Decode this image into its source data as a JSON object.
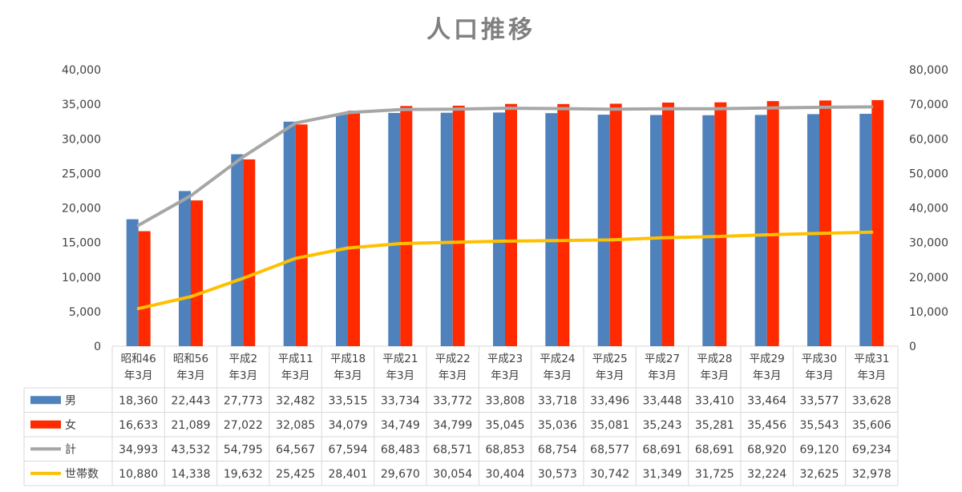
{
  "chart_data": {
    "type": "bar",
    "title": "人口推移",
    "categories": [
      [
        "昭和46",
        "年3月"
      ],
      [
        "昭和56",
        "年3月"
      ],
      [
        "平成2",
        "年3月"
      ],
      [
        "平成11",
        "年3月"
      ],
      [
        "平成18",
        "年3月"
      ],
      [
        "平成21",
        "年3月"
      ],
      [
        "平成22",
        "年3月"
      ],
      [
        "平成23",
        "年3月"
      ],
      [
        "平成24",
        "年3月"
      ],
      [
        "平成25",
        "年3月"
      ],
      [
        "平成27",
        "年3月"
      ],
      [
        "平成28",
        "年3月"
      ],
      [
        "平成29",
        "年3月"
      ],
      [
        "平成30",
        "年3月"
      ],
      [
        "平成31",
        "年3月"
      ]
    ],
    "series": [
      {
        "name": "男",
        "type": "bar",
        "axis": "left",
        "color": "#4f81bd",
        "values": [
          18360,
          22443,
          27773,
          32482,
          33515,
          33734,
          33772,
          33808,
          33718,
          33496,
          33448,
          33410,
          33464,
          33577,
          33628
        ],
        "labels": [
          "18,360",
          "22,443",
          "27,773",
          "32,482",
          "33,515",
          "33,734",
          "33,772",
          "33,808",
          "33,718",
          "33,496",
          "33,448",
          "33,410",
          "33,464",
          "33,577",
          "33,628"
        ]
      },
      {
        "name": "女",
        "type": "bar",
        "axis": "left",
        "color": "#ff2a00",
        "values": [
          16633,
          21089,
          27022,
          32085,
          34079,
          34749,
          34799,
          35045,
          35036,
          35081,
          35243,
          35281,
          35456,
          35543,
          35606
        ],
        "labels": [
          "16,633",
          "21,089",
          "27,022",
          "32,085",
          "34,079",
          "34,749",
          "34,799",
          "35,045",
          "35,036",
          "35,081",
          "35,243",
          "35,281",
          "35,456",
          "35,543",
          "35,606"
        ]
      },
      {
        "name": "計",
        "type": "line",
        "axis": "right",
        "color": "#a6a6a6",
        "values": [
          34993,
          43532,
          54795,
          64567,
          67594,
          68483,
          68571,
          68853,
          68754,
          68577,
          68691,
          68691,
          68920,
          69120,
          69234
        ],
        "labels": [
          "34,993",
          "43,532",
          "54,795",
          "64,567",
          "67,594",
          "68,483",
          "68,571",
          "68,853",
          "68,754",
          "68,577",
          "68,691",
          "68,691",
          "68,920",
          "69,120",
          "69,234"
        ]
      },
      {
        "name": "世帯数",
        "type": "line",
        "axis": "right",
        "color": "#ffc000",
        "values": [
          10880,
          14338,
          19632,
          25425,
          28401,
          29670,
          30054,
          30404,
          30573,
          30742,
          31349,
          31725,
          32224,
          32625,
          32978
        ],
        "labels": [
          "10,880",
          "14,338",
          "19,632",
          "25,425",
          "28,401",
          "29,670",
          "30,054",
          "30,404",
          "30,573",
          "30,742",
          "31,349",
          "31,725",
          "32,224",
          "32,625",
          "32,978"
        ]
      }
    ],
    "y_left": {
      "min": 0,
      "max": 40000,
      "step": 5000,
      "tick_labels": [
        "0",
        "5,000",
        "10,000",
        "15,000",
        "20,000",
        "25,000",
        "30,000",
        "35,000",
        "40,000"
      ]
    },
    "y_right": {
      "min": 0,
      "max": 80000,
      "step": 10000,
      "tick_labels": [
        "0",
        "10,000",
        "20,000",
        "30,000",
        "40,000",
        "50,000",
        "60,000",
        "70,000",
        "80,000"
      ]
    },
    "grid": false,
    "data_table": true
  }
}
